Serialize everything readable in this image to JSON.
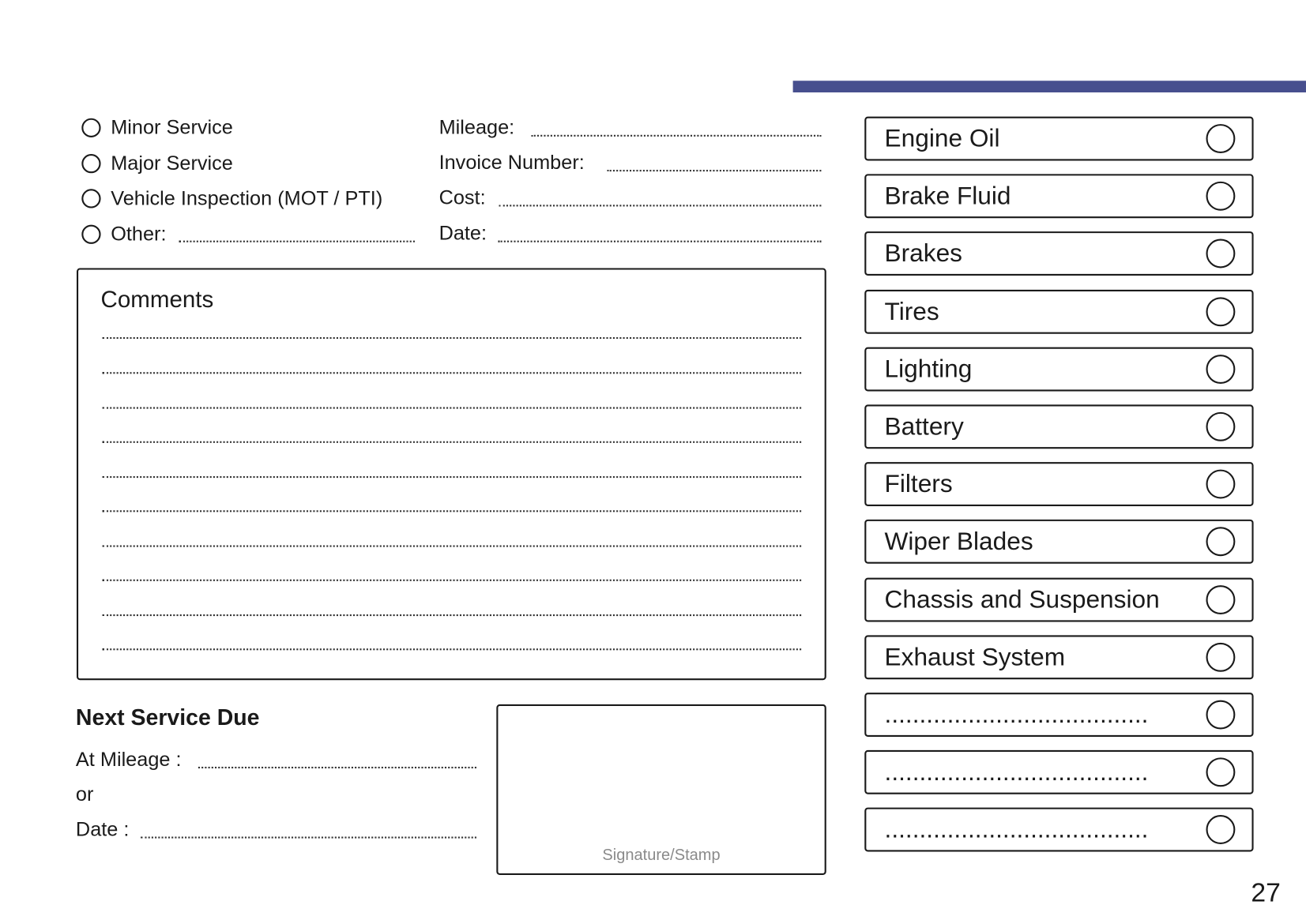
{
  "header": {
    "accent_color": "#474f8e"
  },
  "service_type": {
    "options": [
      {
        "label": "Minor Service"
      },
      {
        "label": "Major Service"
      },
      {
        "label": "Vehicle Inspection (MOT / PTI)"
      },
      {
        "label": "Other:"
      }
    ]
  },
  "details": {
    "mileage_label": "Mileage:",
    "invoice_label": "Invoice Number:",
    "cost_label": "Cost:",
    "date_label": "Date:"
  },
  "comments": {
    "title": "Comments"
  },
  "next_service": {
    "title": "Next Service Due",
    "mileage_label": "At Mileage :",
    "or_label": "or",
    "date_label": "Date :"
  },
  "signature": {
    "label": "Signature/Stamp"
  },
  "checklist": {
    "items": [
      {
        "label": "Engine Oil"
      },
      {
        "label": "Brake Fluid"
      },
      {
        "label": "Brakes"
      },
      {
        "label": "Tires"
      },
      {
        "label": "Lighting"
      },
      {
        "label": "Battery"
      },
      {
        "label": "Filters"
      },
      {
        "label": "Wiper Blades"
      },
      {
        "label": "Chassis and Suspension"
      },
      {
        "label": "Exhaust System"
      },
      {
        "label": "......................................"
      },
      {
        "label": "......................................"
      },
      {
        "label": "......................................"
      }
    ]
  },
  "page_number": "27"
}
